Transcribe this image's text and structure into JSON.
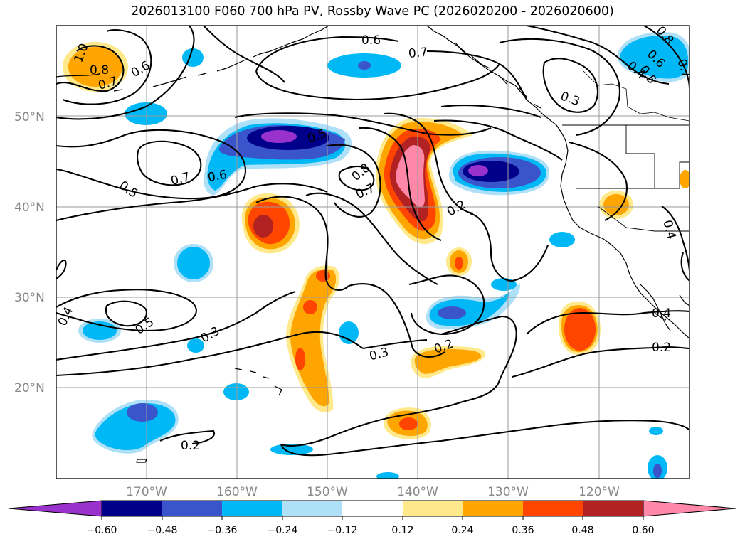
{
  "title": "2026013100 F060 700 hPa PV, Rossby Wave PC (2026020200 - 2026020600)",
  "map": {
    "lon_range": [
      -180,
      -110
    ],
    "lat_range": [
      10,
      60
    ],
    "lat_ticks": [
      "50°N",
      "40°N",
      "30°N",
      "20°N"
    ],
    "lon_ticks": [
      "170°W",
      "160°W",
      "150°W",
      "140°W",
      "130°W",
      "120°W"
    ],
    "grid": true,
    "land_outline_color": "#000000",
    "contour_color": "#000000"
  },
  "contour_labels": [
    "1.0",
    "0.8",
    "0.7",
    "0.6",
    "0.6",
    "0.7",
    "0.3",
    "0.8",
    "0.6",
    "0.4",
    "0.5",
    "0.7",
    "0.5",
    "0.6",
    "0.5",
    "0.7",
    "0.8",
    "0.7",
    "0.2",
    "0.4",
    "0.4",
    "0.5",
    "0.3",
    "0.2",
    "0.3",
    "0.4",
    "0.2",
    "0.2"
  ],
  "colorbar": {
    "tick_labels": [
      "−0.60",
      "−0.48",
      "−0.36",
      "−0.24",
      "−0.12",
      "0.12",
      "0.24",
      "0.36",
      "0.48",
      "0.60"
    ],
    "colors": [
      "#9932cc",
      "#00008b",
      "#3a55cc",
      "#00b8f5",
      "#aee0f8",
      "#ffffff",
      "#ffe98a",
      "#ffa500",
      "#ff4500",
      "#b22222",
      "#ff88a8"
    ],
    "extend": "both"
  }
}
